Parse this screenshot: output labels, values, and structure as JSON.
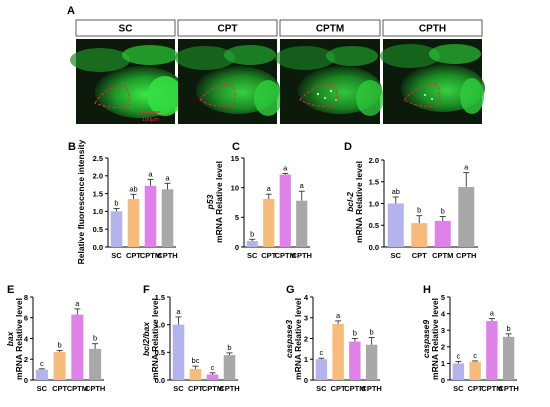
{
  "colors": {
    "SC": "#b3b3ee",
    "CPT": "#f8bb7c",
    "CPTM": "#de82ea",
    "CPTH": "#a8a8a8",
    "fluor_bg": "#0b1a0b",
    "fluor_green": "#2bd63a",
    "outline_red": "#e03030"
  },
  "panel_A": {
    "letter": "A",
    "groups": [
      "SC",
      "CPT",
      "CPTM",
      "CPTH"
    ],
    "scale_bar": "100μm"
  },
  "chart_data": [
    {
      "panel": "B",
      "type": "bar",
      "categories": [
        "SC",
        "CPT",
        "CPTM",
        "CPTH"
      ],
      "values": [
        1.0,
        1.35,
        1.72,
        1.62
      ],
      "errors": [
        0.08,
        0.13,
        0.18,
        0.17
      ],
      "sig": [
        "b",
        "ab",
        "a",
        "a"
      ],
      "ylabel": [
        "Relative fluorescence intensity"
      ],
      "ylim": [
        0,
        2.5
      ],
      "yticks": [
        "0.0",
        "0.5",
        "1.0",
        "1.5",
        "2.0",
        "2.5"
      ]
    },
    {
      "panel": "C",
      "type": "bar",
      "categories": [
        "SC",
        "CPT",
        "CPTM",
        "CPTH"
      ],
      "values": [
        1.0,
        8.1,
        12.2,
        7.8
      ],
      "errors": [
        0.3,
        0.8,
        0.2,
        1.6
      ],
      "sig": [
        "b",
        "a",
        "a",
        "a"
      ],
      "ylabel": [
        "p53",
        "mRNA Relative level"
      ],
      "ylim": [
        0,
        15
      ],
      "yticks": [
        "0",
        "5",
        "10",
        "15"
      ]
    },
    {
      "panel": "D",
      "type": "bar",
      "categories": [
        "SC",
        "CPT",
        "CPTM",
        "CPTH"
      ],
      "values": [
        1.0,
        0.55,
        0.6,
        1.38
      ],
      "errors": [
        0.15,
        0.17,
        0.1,
        0.33
      ],
      "sig": [
        "ab",
        "b",
        "b",
        "a"
      ],
      "ylabel": [
        "bcl-2",
        "mRNA Relative level"
      ],
      "ylim": [
        0,
        2.0
      ],
      "yticks": [
        "0.0",
        "0.5",
        "1.0",
        "1.5",
        "2.0"
      ]
    },
    {
      "panel": "E",
      "type": "bar",
      "categories": [
        "SC",
        "CPT",
        "CPTM",
        "CPTH"
      ],
      "values": [
        1.0,
        2.7,
        6.3,
        3.0
      ],
      "errors": [
        0.08,
        0.15,
        0.55,
        0.5
      ],
      "sig": [
        "c",
        "b",
        "a",
        "b"
      ],
      "ylabel": [
        "bax",
        "mRNA Relative level"
      ],
      "ylim": [
        0,
        8
      ],
      "yticks": [
        "0",
        "2",
        "4",
        "6",
        "8"
      ]
    },
    {
      "panel": "F",
      "type": "bar",
      "categories": [
        "SC",
        "CPT",
        "CPTM",
        "CPTH"
      ],
      "values": [
        1.0,
        0.2,
        0.1,
        0.45
      ],
      "errors": [
        0.14,
        0.05,
        0.03,
        0.04
      ],
      "sig": [
        "a",
        "bc",
        "c",
        "b"
      ],
      "ylabel": [
        "bcl2/bax",
        "mRNA Relative level"
      ],
      "ylim": [
        0,
        1.5
      ],
      "yticks": [
        "0.0",
        "0.5",
        "1.0",
        "1.5"
      ]
    },
    {
      "panel": "G",
      "type": "bar",
      "categories": [
        "SC",
        "CPT",
        "CPTM",
        "CPTH"
      ],
      "values": [
        1.0,
        2.7,
        1.85,
        1.7
      ],
      "errors": [
        0.05,
        0.15,
        0.15,
        0.35
      ],
      "sig": [
        "c",
        "a",
        "b",
        "b"
      ],
      "ylabel": [
        "caspase3",
        "mRNA Relative level"
      ],
      "ylim": [
        0,
        4
      ],
      "yticks": [
        "0",
        "1",
        "2",
        "3",
        "4"
      ]
    },
    {
      "panel": "H",
      "type": "bar",
      "categories": [
        "SC",
        "CPT",
        "CPTM",
        "CPTH"
      ],
      "values": [
        1.0,
        1.1,
        3.55,
        2.6
      ],
      "errors": [
        0.12,
        0.05,
        0.15,
        0.18
      ],
      "sig": [
        "c",
        "c",
        "a",
        "b"
      ],
      "ylabel": [
        "caspase9",
        "mRNA Relative level"
      ],
      "ylim": [
        0,
        5
      ],
      "yticks": [
        "0",
        "1",
        "2",
        "3",
        "4",
        "5"
      ]
    }
  ]
}
